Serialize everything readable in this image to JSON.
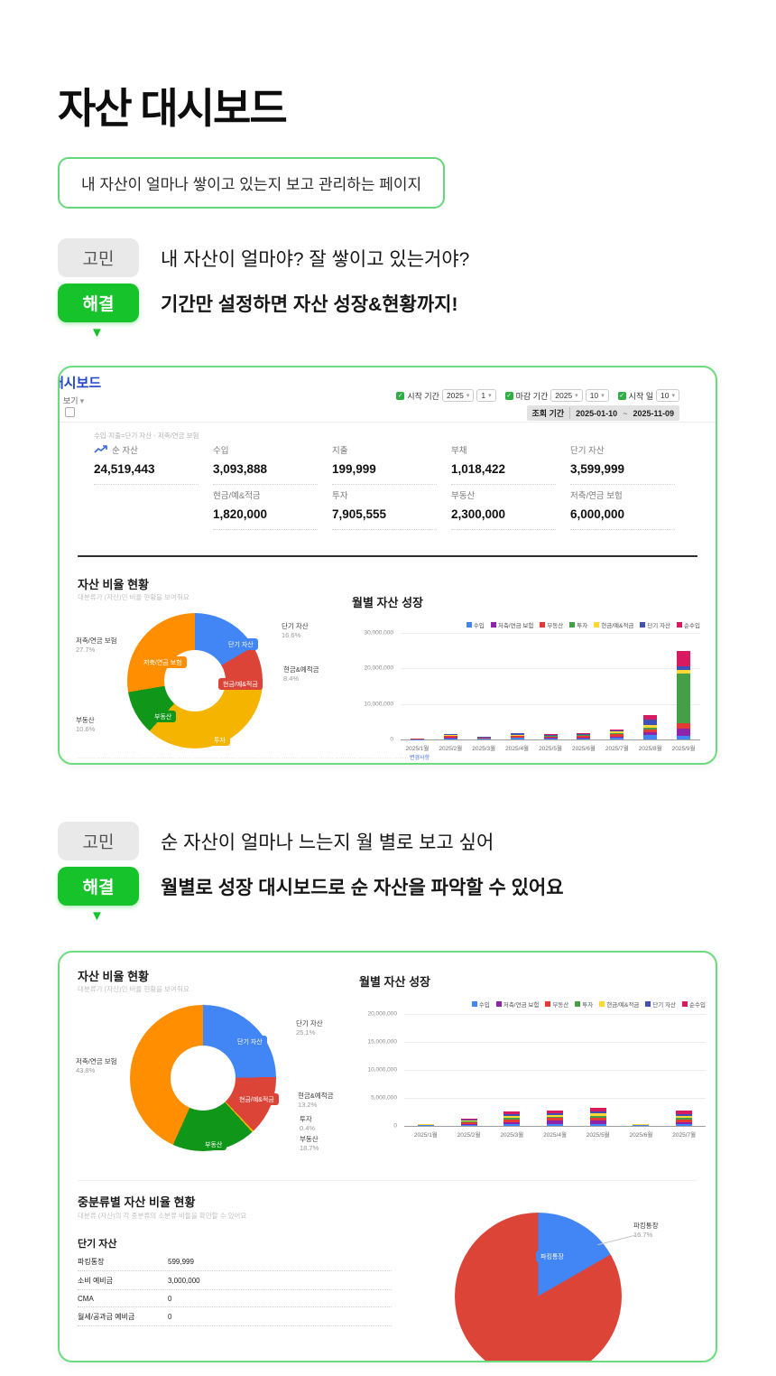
{
  "page": {
    "title": "자산 대시보드",
    "subtitle_box": "내 자산이 얼마나 쌓이고 있는지 보고 관리하는 페이지",
    "qa1": {
      "q_label": "고민",
      "q_text": "내 자산이 얼마야? 잘 쌓이고 있는거야?",
      "a_label": "해결",
      "a_text": "기간만 설정하면 자산 성장&현황까지!"
    },
    "qa2": {
      "q_label": "고민",
      "q_text": "순 자산이 얼마나 느는지 월 별로 보고 싶어",
      "a_label": "해결",
      "a_text": "월별로 성장 대시보드로 순 자산을 파악할 수 있어요"
    }
  },
  "colors": {
    "accent_green": "#16c32a",
    "border_green": "#6cdb7d",
    "header_blue": "#1f46c7"
  },
  "dashboard1": {
    "header_title": "대시보드",
    "view_label": "보기",
    "filters": [
      {
        "label": "시작 기간",
        "year": "2025",
        "month": "1"
      },
      {
        "label": "마감 기간",
        "year": "2025",
        "month": "10"
      },
      {
        "label": "시작 일",
        "day": "10"
      }
    ],
    "period": {
      "label": "조회 기간",
      "from": "2025-01-10",
      "tilde": "~",
      "to": "2025-11-09"
    },
    "formula_note": "수입·지출=단기 자산 - 저축/연금 보험",
    "stats_row1": [
      {
        "label": "순 자산",
        "value": "24,519,443"
      },
      {
        "label": "수입",
        "value": "3,093,888"
      },
      {
        "label": "지출",
        "value": "199,999"
      },
      {
        "label": "부채",
        "value": "1,018,422"
      },
      {
        "label": "단기 자산",
        "value": "3,599,999"
      }
    ],
    "stats_row2": [
      {
        "label": "현금/예&적금",
        "value": "1,820,000"
      },
      {
        "label": "투자",
        "value": "7,905,555"
      },
      {
        "label": "부동산",
        "value": "2,300,000"
      },
      {
        "label": "저축/연금 보험",
        "value": "6,000,000"
      }
    ],
    "ratio_title": "자산 비율 현황",
    "ratio_subtitle": "대분류가 (자산)인 비율 현황을 보여줘요",
    "growth_title": "월별 자산 성장",
    "donut_chips": [
      "단기 자산",
      "저축/연금 보험",
      "현금/예&적금",
      "부동산",
      "투자"
    ],
    "donut_callouts": [
      {
        "text": "단기 자산",
        "pct": "16.6%"
      },
      {
        "text": "현금&예적금",
        "pct": "8.4%"
      },
      {
        "text": "저축/연금 보험",
        "pct": "27.7%"
      },
      {
        "text": "부동산",
        "pct": "10.6%"
      }
    ],
    "fine_print": "·········· ········ ············· ········· ··········· ········ ·············· ········· ··········· ············ ········· ·········· ········ ············ ········· ········· ········",
    "fine_print_link": "변경사항"
  },
  "dashboard2": {
    "ratio_title": "자산 비율 현황",
    "ratio_subtitle": "대분류가 (자산)인 비율 현황을 보여줘요",
    "growth_title": "월별 자산 성장",
    "donut_chips": [
      "단기 자산",
      "현금/예&적금",
      "부동산"
    ],
    "donut_callouts": [
      {
        "text": "단기 자산",
        "pct": "25.1%"
      },
      {
        "text": "현금&예적금",
        "pct": "13.2%"
      },
      {
        "text": "투자",
        "pct": "0.4%"
      },
      {
        "text": "부동산",
        "pct": "18.7%"
      },
      {
        "text": "저축/연금 보험",
        "pct": "43.8%"
      }
    ],
    "mid_title": "중분류별 자산 비율 현황",
    "mid_subtitle": "대분류 (자산)의 각 중분류의 소분류 비율을 확인할 수 있어요",
    "group_title": "단기 자산",
    "table": [
      {
        "label": "파킹통장",
        "value": "599,999"
      },
      {
        "label": "소비 예비금",
        "value": "3,000,000"
      },
      {
        "label": "CMA",
        "value": "0"
      },
      {
        "label": "월세/공과금 예비금",
        "value": "0"
      }
    ],
    "pie_chip": "파킹통장",
    "pie_callout": {
      "text": "파킹통장",
      "pct": "16.7%"
    }
  },
  "chart_data": [
    {
      "id": "donut-asset-ratio-1",
      "type": "pie",
      "donut": true,
      "title": "자산 비율 현황",
      "labels": [
        "단기 자산",
        "현금/예&적금",
        "투자",
        "부동산",
        "저축/연금 보험"
      ],
      "values": [
        16.6,
        8.4,
        36.7,
        10.6,
        27.7
      ],
      "colors": [
        "#4285F4",
        "#DB4437",
        "#F4B400",
        "#109618",
        "#FF8F00"
      ]
    },
    {
      "id": "bars-monthly-growth-1",
      "type": "bar",
      "stacked": true,
      "title": "월별 자산 성장",
      "categories": [
        "2025/1월",
        "2025/2월",
        "2025/3월",
        "2025/4월",
        "2025/5월",
        "2025/6월",
        "2025/7월",
        "2025/8월",
        "2025/9월"
      ],
      "series": [
        {
          "name": "수입",
          "color": "#4285F4",
          "values": [
            100000,
            300000,
            200000,
            400000,
            300000,
            300000,
            500000,
            1200000,
            1000000
          ]
        },
        {
          "name": "저축/연금 보험",
          "color": "#8E24AA",
          "values": [
            0,
            100000,
            0,
            100000,
            100000,
            100000,
            200000,
            800000,
            2000000
          ]
        },
        {
          "name": "부동산",
          "color": "#E53935",
          "values": [
            100000,
            500000,
            200000,
            400000,
            300000,
            600000,
            900000,
            800000,
            1500000
          ]
        },
        {
          "name": "투자",
          "color": "#43A047",
          "values": [
            0,
            100000,
            100000,
            200000,
            200000,
            200000,
            300000,
            500000,
            14000000
          ]
        },
        {
          "name": "현금/예&적금",
          "color": "#FDD835",
          "values": [
            0,
            300000,
            100000,
            300000,
            200000,
            200000,
            300000,
            700000,
            1000000
          ]
        },
        {
          "name": "단기 자산",
          "color": "#3F51B5",
          "values": [
            100000,
            200000,
            100000,
            300000,
            300000,
            200000,
            300000,
            1500000,
            1000000
          ]
        },
        {
          "name": "순수입",
          "color": "#D81B60",
          "values": [
            0,
            100000,
            100000,
            200000,
            200000,
            100000,
            300000,
            1500000,
            4500000
          ]
        }
      ],
      "ylim": [
        0,
        30000000
      ],
      "yticks": [
        "30,000,000",
        "20,000,000",
        "10,000,000",
        "0"
      ]
    },
    {
      "id": "donut-asset-ratio-2",
      "type": "pie",
      "donut": true,
      "title": "자산 비율 현황",
      "labels": [
        "단기 자산",
        "현금/예&적금",
        "투자",
        "부동산",
        "저축/연금 보험"
      ],
      "values": [
        25.1,
        13.2,
        0.4,
        18.7,
        43.8
      ],
      "colors": [
        "#4285F4",
        "#DB4437",
        "#F4B400",
        "#109618",
        "#FF8F00"
      ]
    },
    {
      "id": "bars-monthly-growth-2",
      "type": "bar",
      "stacked": true,
      "title": "월별 자산 성장",
      "categories": [
        "2025/1월",
        "2025/2월",
        "2025/3월",
        "2025/4월",
        "2025/5월",
        "2025/6월",
        "2025/7월"
      ],
      "series": [
        {
          "name": "수입",
          "color": "#4285F4",
          "values": [
            100000,
            200000,
            300000,
            400000,
            400000,
            100000,
            300000
          ]
        },
        {
          "name": "저축/연금 보험",
          "color": "#8E24AA",
          "values": [
            0,
            100000,
            400000,
            500000,
            500000,
            0,
            400000
          ]
        },
        {
          "name": "부동산",
          "color": "#E53935",
          "values": [
            100000,
            400000,
            500000,
            500000,
            600000,
            100000,
            500000
          ]
        },
        {
          "name": "투자",
          "color": "#43A047",
          "values": [
            0,
            100000,
            200000,
            200000,
            300000,
            0,
            200000
          ]
        },
        {
          "name": "현금/예&적금",
          "color": "#FDD835",
          "values": [
            100000,
            200000,
            400000,
            400000,
            400000,
            100000,
            400000
          ]
        },
        {
          "name": "단기 자산",
          "color": "#3F51B5",
          "values": [
            0,
            100000,
            300000,
            300000,
            400000,
            0,
            300000
          ]
        },
        {
          "name": "순수입",
          "color": "#D81B60",
          "values": [
            100000,
            200000,
            500000,
            500000,
            600000,
            100000,
            700000
          ]
        }
      ],
      "ylim": [
        0,
        20000000
      ],
      "yticks": [
        "20,000,000",
        "15,000,000",
        "10,000,000",
        "5,000,000",
        "0"
      ]
    },
    {
      "id": "pie-parking-account",
      "type": "pie",
      "donut": false,
      "labels": [
        "파킹통장",
        ""
      ],
      "values": [
        16.7,
        83.3
      ],
      "colors": [
        "#4285F4",
        "#DB4437"
      ]
    }
  ]
}
